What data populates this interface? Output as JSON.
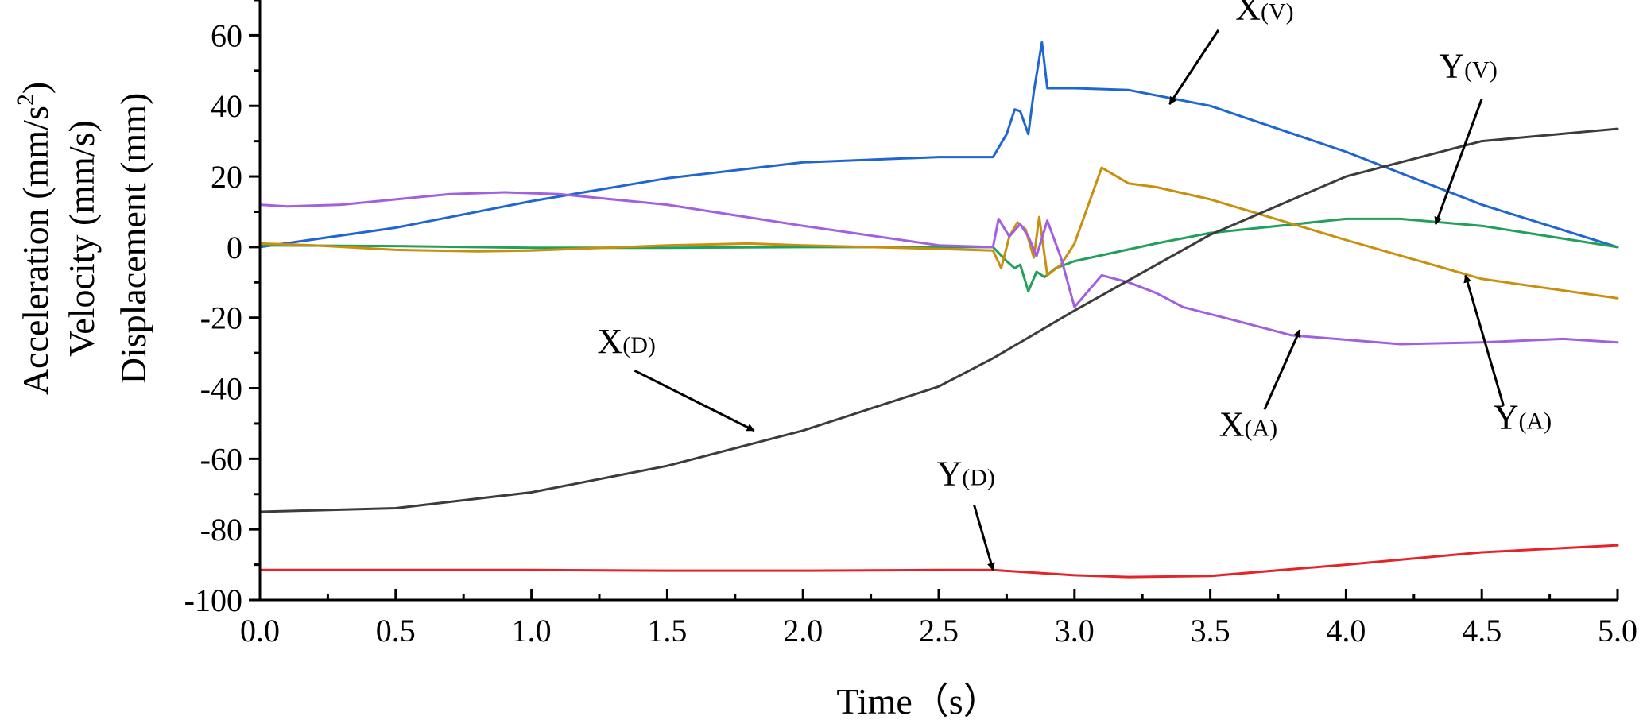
{
  "chart_data": {
    "type": "line",
    "xlabel": "Time（s）",
    "ylabel_lines": [
      "Acceleration (mm/s",
      "Velocity (mm/s)",
      "Displacement (mm)"
    ],
    "ylabel_sup": "2",
    "ylabel_close": ")",
    "xlim": [
      0,
      5
    ],
    "ylim": [
      -100,
      70
    ],
    "x_ticks": [
      0,
      0.5,
      1,
      1.5,
      2,
      2.5,
      3,
      3.5,
      4,
      4.5,
      5
    ],
    "x_tick_labels": [
      "0.0",
      "0.5",
      "1.0",
      "1.5",
      "2.0",
      "2.5",
      "3.0",
      "3.5",
      "4.0",
      "4.5",
      "5.0"
    ],
    "y_ticks": [
      -100,
      -80,
      -60,
      -40,
      -20,
      0,
      20,
      40,
      60
    ],
    "y_tick_labels": [
      "-100",
      "-80",
      "-60",
      "-40",
      "-20",
      "0",
      "20",
      "40",
      "60"
    ],
    "grid": false,
    "legend": "none",
    "series": [
      {
        "id": "xv",
        "color": "#1f66d1",
        "points": [
          [
            0,
            0
          ],
          [
            0.5,
            5.5
          ],
          [
            1,
            13
          ],
          [
            1.5,
            19.5
          ],
          [
            2,
            24
          ],
          [
            2.5,
            25.5
          ],
          [
            2.7,
            25.5
          ],
          [
            2.75,
            32
          ],
          [
            2.78,
            39
          ],
          [
            2.8,
            38.5
          ],
          [
            2.83,
            32
          ],
          [
            2.85,
            44
          ],
          [
            2.88,
            58
          ],
          [
            2.9,
            45
          ],
          [
            3,
            45
          ],
          [
            3.2,
            44.5
          ],
          [
            3.5,
            40
          ],
          [
            4,
            27
          ],
          [
            4.5,
            12
          ],
          [
            5,
            0
          ]
        ]
      },
      {
        "id": "yv",
        "color": "#22a05b",
        "points": [
          [
            0,
            0.5
          ],
          [
            0.5,
            0.3
          ],
          [
            1,
            -0.2
          ],
          [
            1.5,
            -0.2
          ],
          [
            2,
            0
          ],
          [
            2.5,
            0
          ],
          [
            2.7,
            0
          ],
          [
            2.75,
            -4
          ],
          [
            2.78,
            -6
          ],
          [
            2.8,
            -5
          ],
          [
            2.83,
            -12.5
          ],
          [
            2.86,
            -7
          ],
          [
            2.89,
            -8.5
          ],
          [
            2.93,
            -6
          ],
          [
            3,
            -4
          ],
          [
            3.3,
            1
          ],
          [
            3.5,
            4
          ],
          [
            4,
            8
          ],
          [
            4.2,
            8
          ],
          [
            4.5,
            6
          ],
          [
            5,
            0
          ]
        ]
      },
      {
        "id": "ya",
        "color": "#c8900e",
        "points": [
          [
            0,
            1
          ],
          [
            0.2,
            0.5
          ],
          [
            0.5,
            -0.8
          ],
          [
            0.8,
            -1.2
          ],
          [
            1,
            -1
          ],
          [
            1.5,
            0.5
          ],
          [
            1.8,
            1
          ],
          [
            2,
            0.5
          ],
          [
            2.5,
            -0.5
          ],
          [
            2.7,
            -1
          ],
          [
            2.73,
            -6
          ],
          [
            2.76,
            3
          ],
          [
            2.79,
            7
          ],
          [
            2.82,
            5
          ],
          [
            2.85,
            -3
          ],
          [
            2.87,
            8.5
          ],
          [
            2.9,
            -8
          ],
          [
            2.95,
            -5
          ],
          [
            3,
            1
          ],
          [
            3.1,
            22.5
          ],
          [
            3.2,
            18
          ],
          [
            3.3,
            17
          ],
          [
            3.5,
            13.5
          ],
          [
            4,
            2
          ],
          [
            4.5,
            -9
          ],
          [
            5,
            -14.5
          ]
        ]
      },
      {
        "id": "xa",
        "color": "#a25fe0",
        "points": [
          [
            0,
            12
          ],
          [
            0.1,
            11.5
          ],
          [
            0.3,
            12
          ],
          [
            0.5,
            13.5
          ],
          [
            0.7,
            15
          ],
          [
            0.9,
            15.5
          ],
          [
            1.1,
            15
          ],
          [
            1.5,
            12
          ],
          [
            2,
            6
          ],
          [
            2.5,
            0.5
          ],
          [
            2.7,
            0
          ],
          [
            2.72,
            8
          ],
          [
            2.76,
            3
          ],
          [
            2.8,
            6.5
          ],
          [
            2.83,
            3
          ],
          [
            2.86,
            -2.5
          ],
          [
            2.9,
            7.5
          ],
          [
            2.95,
            -3
          ],
          [
            3,
            -17
          ],
          [
            3.1,
            -8
          ],
          [
            3.2,
            -10
          ],
          [
            3.3,
            -13
          ],
          [
            3.4,
            -17
          ],
          [
            3.6,
            -21
          ],
          [
            3.8,
            -25
          ],
          [
            4.2,
            -27.5
          ],
          [
            4.5,
            -27
          ],
          [
            4.8,
            -26
          ],
          [
            5,
            -27
          ]
        ]
      },
      {
        "id": "xd",
        "color": "#3c3c3c",
        "points": [
          [
            0,
            -75
          ],
          [
            0.5,
            -74
          ],
          [
            1,
            -69.5
          ],
          [
            1.5,
            -62
          ],
          [
            2,
            -52
          ],
          [
            2.5,
            -39.5
          ],
          [
            2.7,
            -31.5
          ],
          [
            3,
            -18
          ],
          [
            3.5,
            3.5
          ],
          [
            4,
            20
          ],
          [
            4.5,
            30
          ],
          [
            5,
            33.5
          ]
        ]
      },
      {
        "id": "yd",
        "color": "#e5242a",
        "points": [
          [
            0,
            -91.5
          ],
          [
            0.5,
            -91.5
          ],
          [
            1,
            -91.5
          ],
          [
            1.5,
            -91.7
          ],
          [
            2,
            -91.7
          ],
          [
            2.5,
            -91.5
          ],
          [
            2.7,
            -91.5
          ],
          [
            3,
            -93
          ],
          [
            3.2,
            -93.5
          ],
          [
            3.5,
            -93.2
          ],
          [
            4,
            -90
          ],
          [
            4.5,
            -86.5
          ],
          [
            5,
            -84.5
          ]
        ]
      }
    ],
    "annotations": [
      {
        "name": "X",
        "sub": "(V)",
        "text_at": [
          3.7,
          64.5
        ],
        "from": [
          3.53,
          61.5
        ],
        "to": [
          3.35,
          40.5
        ]
      },
      {
        "name": "Y",
        "sub": "(V)",
        "text_at": [
          4.45,
          48
        ],
        "from": [
          4.5,
          42
        ],
        "to": [
          4.33,
          6.5
        ]
      },
      {
        "name": "X",
        "sub": "(A)",
        "text_at": [
          3.64,
          -53.5
        ],
        "from": [
          3.7,
          -46
        ],
        "to": [
          3.83,
          -23.5
        ]
      },
      {
        "name": "Y",
        "sub": "(A)",
        "text_at": [
          4.65,
          -51.5
        ],
        "from": [
          4.58,
          -45
        ],
        "to": [
          4.44,
          -8
        ]
      },
      {
        "name": "X",
        "sub": "(D)",
        "text_at": [
          1.35,
          -30
        ],
        "from": [
          1.38,
          -35
        ],
        "to": [
          1.82,
          -52
        ]
      },
      {
        "name": "Y",
        "sub": "(D)",
        "text_at": [
          2.6,
          -67.5
        ],
        "from": [
          2.63,
          -73
        ],
        "to": [
          2.7,
          -91.5
        ]
      }
    ]
  }
}
